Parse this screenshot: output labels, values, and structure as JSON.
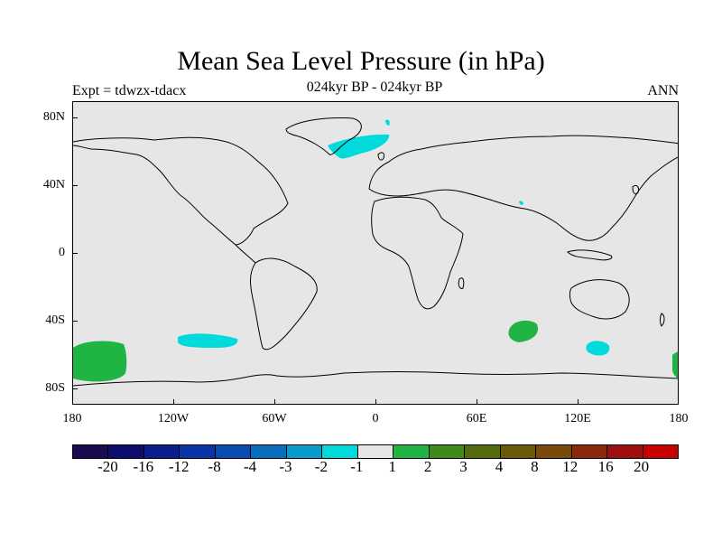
{
  "title": "Mean Sea Level Pressure (in hPa)",
  "subtitle_left": "Expt = tdwzx-tdacx",
  "subtitle_center": "024kyr BP - 024kyr BP",
  "subtitle_right": "ANN",
  "y_ticks": [
    "80N",
    "40N",
    "0",
    "40S",
    "80S"
  ],
  "x_ticks": [
    "180",
    "120W",
    "60W",
    "0",
    "60E",
    "120E",
    "180"
  ],
  "colorbar": {
    "colors": [
      "#1a0a4f",
      "#0d0d6e",
      "#0a1f8c",
      "#0a33a6",
      "#0a4cb0",
      "#0a6ebe",
      "#0a9acc",
      "#00dada",
      "#e6e6e6",
      "#1fb443",
      "#3f8a1a",
      "#556b0f",
      "#6b5a0a",
      "#7a4a0a",
      "#8a2a0a",
      "#a00f0f",
      "#c80000"
    ],
    "labels": [
      "-20",
      "-16",
      "-12",
      "-8",
      "-4",
      "-3",
      "-2",
      "-1",
      "1",
      "2",
      "3",
      "4",
      "8",
      "12",
      "16",
      "20"
    ]
  },
  "chart_data": {
    "type": "map",
    "projection": "cylindrical-equidistant",
    "lon_range": [
      -180,
      180
    ],
    "lat_range": [
      -90,
      90
    ],
    "background_value_range": [
      -1,
      1
    ],
    "anomalies": [
      {
        "sign": "negative",
        "class": "-2 to -1",
        "color": "#00dada",
        "lon": [
          -40,
          -10
        ],
        "lat": [
          62,
          70
        ]
      },
      {
        "sign": "negative",
        "class": "-2 to -1",
        "color": "#00dada",
        "lon": [
          -120,
          -95
        ],
        "lat": [
          -55,
          -50
        ]
      },
      {
        "sign": "negative",
        "class": "-2 to -1",
        "color": "#00dada",
        "lon": [
          125,
          135
        ],
        "lat": [
          -60,
          -55
        ]
      },
      {
        "sign": "positive",
        "class": "1 to 2",
        "color": "#1fb443",
        "lon": [
          -180,
          -155
        ],
        "lat": [
          -72,
          -53
        ]
      },
      {
        "sign": "positive",
        "class": "1 to 2",
        "color": "#1fb443",
        "lon": [
          80,
          95
        ],
        "lat": [
          -50,
          -40
        ]
      },
      {
        "sign": "positive",
        "class": "1 to 2",
        "color": "#1fb443",
        "lon": [
          175,
          180
        ],
        "lat": [
          -70,
          -60
        ]
      }
    ]
  }
}
